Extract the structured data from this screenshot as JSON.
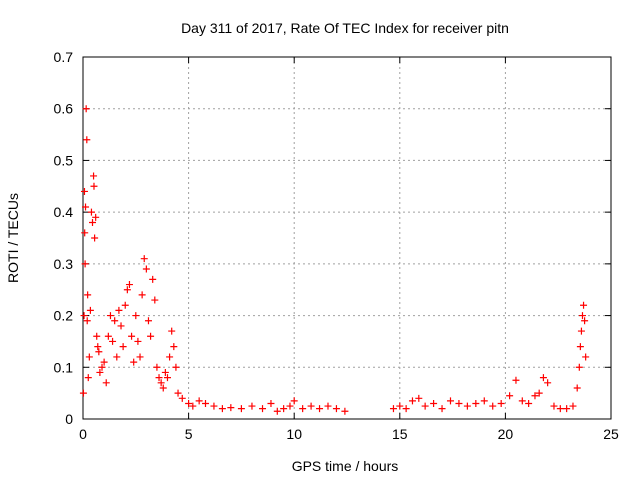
{
  "chart_data": {
    "type": "scatter",
    "title": "Day 311 of 2017, Rate Of TEC Index for receiver pitn",
    "xlabel": "GPS time / hours",
    "ylabel": "ROTI / TECUs",
    "xlim": [
      0,
      25
    ],
    "ylim": [
      0,
      0.7
    ],
    "x_ticks": [
      0,
      5,
      10,
      15,
      20,
      25
    ],
    "y_ticks": [
      0,
      0.1,
      0.2,
      0.3,
      0.4,
      0.5,
      0.6,
      0.7
    ],
    "x_tick_labels": [
      "0",
      "5",
      "10",
      "15",
      "20",
      "25"
    ],
    "y_tick_labels": [
      "0",
      "0.1",
      "0.2",
      "0.3",
      "0.4",
      "0.5",
      "0.6",
      "0.7"
    ],
    "grid": true,
    "marker": "+",
    "marker_color": "#ff0000",
    "series": [
      {
        "name": "ROTI",
        "points": [
          [
            0.02,
            0.05
          ],
          [
            0.05,
            0.2
          ],
          [
            0.07,
            0.44
          ],
          [
            0.08,
            0.36
          ],
          [
            0.1,
            0.3
          ],
          [
            0.12,
            0.41
          ],
          [
            0.15,
            0.6
          ],
          [
            0.18,
            0.54
          ],
          [
            0.2,
            0.19
          ],
          [
            0.22,
            0.24
          ],
          [
            0.25,
            0.08
          ],
          [
            0.3,
            0.12
          ],
          [
            0.35,
            0.21
          ],
          [
            0.4,
            0.4
          ],
          [
            0.45,
            0.38
          ],
          [
            0.5,
            0.47
          ],
          [
            0.52,
            0.45
          ],
          [
            0.55,
            0.35
          ],
          [
            0.6,
            0.39
          ],
          [
            0.65,
            0.16
          ],
          [
            0.7,
            0.14
          ],
          [
            0.75,
            0.13
          ],
          [
            0.8,
            0.09
          ],
          [
            0.9,
            0.1
          ],
          [
            1.0,
            0.11
          ],
          [
            1.1,
            0.07
          ],
          [
            1.2,
            0.16
          ],
          [
            1.3,
            0.2
          ],
          [
            1.4,
            0.15
          ],
          [
            1.5,
            0.19
          ],
          [
            1.6,
            0.12
          ],
          [
            1.7,
            0.21
          ],
          [
            1.8,
            0.18
          ],
          [
            1.9,
            0.14
          ],
          [
            2.0,
            0.22
          ],
          [
            2.1,
            0.25
          ],
          [
            2.2,
            0.26
          ],
          [
            2.3,
            0.16
          ],
          [
            2.4,
            0.11
          ],
          [
            2.5,
            0.2
          ],
          [
            2.6,
            0.15
          ],
          [
            2.7,
            0.12
          ],
          [
            2.8,
            0.24
          ],
          [
            2.9,
            0.31
          ],
          [
            3.0,
            0.29
          ],
          [
            3.1,
            0.19
          ],
          [
            3.2,
            0.16
          ],
          [
            3.3,
            0.27
          ],
          [
            3.4,
            0.23
          ],
          [
            3.5,
            0.1
          ],
          [
            3.6,
            0.08
          ],
          [
            3.7,
            0.07
          ],
          [
            3.8,
            0.06
          ],
          [
            3.9,
            0.09
          ],
          [
            4.0,
            0.08
          ],
          [
            4.1,
            0.12
          ],
          [
            4.2,
            0.17
          ],
          [
            4.3,
            0.14
          ],
          [
            4.4,
            0.1
          ],
          [
            4.5,
            0.05
          ],
          [
            4.7,
            0.04
          ],
          [
            5.0,
            0.03
          ],
          [
            5.2,
            0.025
          ],
          [
            5.5,
            0.035
          ],
          [
            5.8,
            0.03
          ],
          [
            6.2,
            0.025
          ],
          [
            6.6,
            0.02
          ],
          [
            7.0,
            0.022
          ],
          [
            7.5,
            0.02
          ],
          [
            8.0,
            0.025
          ],
          [
            8.5,
            0.02
          ],
          [
            8.9,
            0.03
          ],
          [
            9.2,
            0.015
          ],
          [
            9.5,
            0.02
          ],
          [
            9.8,
            0.025
          ],
          [
            10.0,
            0.035
          ],
          [
            10.4,
            0.02
          ],
          [
            10.8,
            0.025
          ],
          [
            11.2,
            0.02
          ],
          [
            11.6,
            0.025
          ],
          [
            12.0,
            0.02
          ],
          [
            12.4,
            0.015
          ],
          [
            14.7,
            0.02
          ],
          [
            15.0,
            0.025
          ],
          [
            15.3,
            0.02
          ],
          [
            15.6,
            0.035
          ],
          [
            15.9,
            0.04
          ],
          [
            16.2,
            0.025
          ],
          [
            16.6,
            0.03
          ],
          [
            17.0,
            0.02
          ],
          [
            17.4,
            0.035
          ],
          [
            17.8,
            0.03
          ],
          [
            18.2,
            0.025
          ],
          [
            18.6,
            0.03
          ],
          [
            19.0,
            0.035
          ],
          [
            19.4,
            0.025
          ],
          [
            19.8,
            0.03
          ],
          [
            20.2,
            0.045
          ],
          [
            20.5,
            0.075
          ],
          [
            20.8,
            0.035
          ],
          [
            21.1,
            0.03
          ],
          [
            21.4,
            0.045
          ],
          [
            21.6,
            0.05
          ],
          [
            21.8,
            0.08
          ],
          [
            22.0,
            0.07
          ],
          [
            22.3,
            0.025
          ],
          [
            22.6,
            0.02
          ],
          [
            22.9,
            0.02
          ],
          [
            23.2,
            0.025
          ],
          [
            23.4,
            0.06
          ],
          [
            23.5,
            0.1
          ],
          [
            23.55,
            0.14
          ],
          [
            23.6,
            0.17
          ],
          [
            23.65,
            0.2
          ],
          [
            23.7,
            0.22
          ],
          [
            23.75,
            0.19
          ],
          [
            23.8,
            0.12
          ]
        ]
      }
    ]
  }
}
